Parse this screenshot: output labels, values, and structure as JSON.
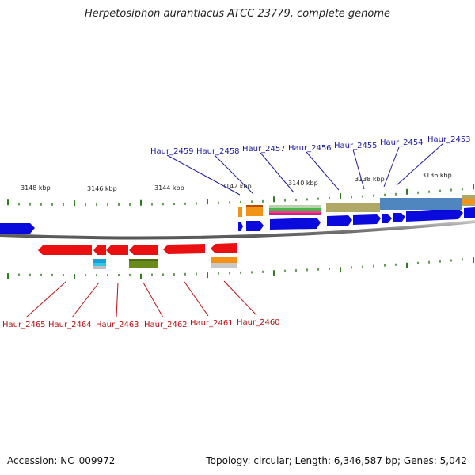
{
  "title": "Herpetosiphon aurantiacus ATCC 23779, complete genome",
  "footer": {
    "accession": "Accession: NC_009972",
    "stats": "Topology: circular; Length: 6,346,587 bp; Genes: 5,042"
  },
  "ticks": [
    "3148 kbp",
    "3146 kbp",
    "3144 kbp",
    "3142 kbp",
    "3140 kbp",
    "3138 kbp",
    "3136 kbp"
  ],
  "genes_forward": [
    "Haur_2459",
    "Haur_2458",
    "Haur_2457",
    "Haur_2456",
    "Haur_2455",
    "Haur_2454",
    "Haur_2453"
  ],
  "genes_reverse": [
    "Haur_2465",
    "Haur_2464",
    "Haur_2463",
    "Haur_2462",
    "Haur_2461",
    "Haur_2460"
  ],
  "colors": {
    "forward": "#0a0adc",
    "reverse": "#e81010",
    "backbone": "#8a8a8a",
    "tick": "#2e7d1e",
    "label_forward": "#1a1aa6",
    "label_reverse": "#c01010"
  }
}
